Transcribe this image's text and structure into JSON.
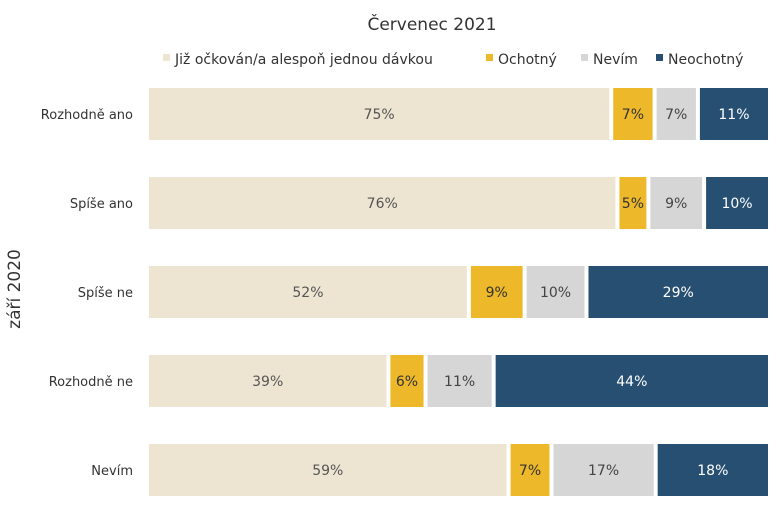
{
  "chart_data": {
    "type": "bar",
    "orientation": "horizontal",
    "stacked": true,
    "normalized": true,
    "title": "Červenec 2021",
    "ylabel": "září 2020",
    "xlabel": "",
    "legend_position": "top",
    "grid": false,
    "categories": [
      "Rozhodně ano",
      "Spíše ano",
      "Spíše ne",
      "Rozhodně ne",
      "Nevím"
    ],
    "series": [
      {
        "name": "Již očkován/a alespoň jednou dávkou",
        "color": "#EDE5D2",
        "label_color": "#555555",
        "values": [
          75,
          76,
          52,
          39,
          59
        ]
      },
      {
        "name": "Ochotný",
        "color": "#EDB829",
        "label_color": "#333333",
        "values": [
          7,
          5,
          9,
          6,
          7
        ]
      },
      {
        "name": "Nevím",
        "color": "#D6D6D6",
        "label_color": "#444444",
        "values": [
          7,
          9,
          10,
          11,
          17
        ]
      },
      {
        "name": "Neochotný",
        "color": "#264F72",
        "label_color": "#ffffff",
        "values": [
          11,
          10,
          29,
          44,
          18
        ]
      }
    ],
    "value_suffix": "%"
  }
}
